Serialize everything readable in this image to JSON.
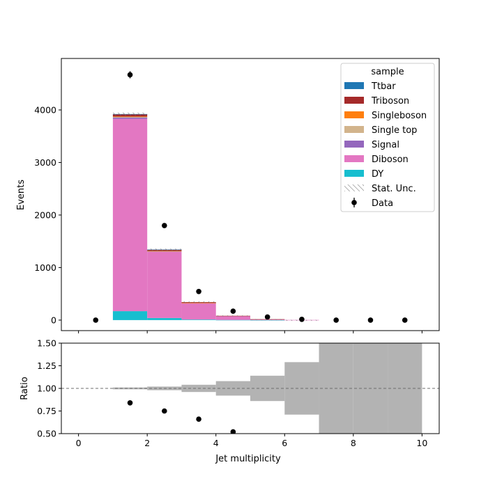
{
  "chart_data": {
    "type": "bar",
    "stacked": true,
    "main": {
      "ylabel": "Events",
      "xlim": [
        -0.5,
        10.5
      ],
      "ylim": [
        -200,
        4980
      ],
      "yticks": [
        0,
        1000,
        2000,
        3000,
        4000
      ],
      "tick_labels": {
        "y": [
          "0",
          "1000",
          "2000",
          "3000",
          "4000"
        ]
      }
    },
    "bins": [
      [
        1,
        2
      ],
      [
        2,
        3
      ],
      [
        3,
        4
      ],
      [
        4,
        5
      ],
      [
        5,
        6
      ],
      [
        6,
        7
      ]
    ],
    "series": [
      {
        "name": "DY",
        "color": "#17becf",
        "values": [
          170,
          40,
          10,
          3,
          1,
          0
        ]
      },
      {
        "name": "Diboson",
        "color": "#e377c2",
        "values": [
          3660,
          1260,
          315,
          75,
          15,
          3
        ]
      },
      {
        "name": "Signal",
        "color": "#9467bd",
        "values": [
          25,
          8,
          2,
          0,
          0,
          0
        ]
      },
      {
        "name": "Single top",
        "color": "#d2b48c",
        "values": [
          15,
          5,
          2,
          0,
          0,
          0
        ]
      },
      {
        "name": "Singleboson",
        "color": "#ff7f0e",
        "values": [
          5,
          3,
          1,
          0,
          0,
          0
        ]
      },
      {
        "name": "Triboson",
        "color": "#a52a2a",
        "values": [
          45,
          25,
          12,
          4,
          1,
          0
        ]
      },
      {
        "name": "Ttbar",
        "color": "#1f77b4",
        "values": [
          2,
          1,
          0,
          0,
          0,
          0
        ]
      }
    ],
    "stat_unc": [
      28,
      20,
      15,
      8,
      4,
      2
    ],
    "data": {
      "name": "Data",
      "x": [
        0.5,
        1.5,
        2.5,
        3.5,
        4.5,
        5.5,
        6.5,
        7.5,
        8.5,
        9.5
      ],
      "y": [
        0,
        4670,
        1800,
        545,
        170,
        60,
        15,
        0,
        0,
        0
      ],
      "err": [
        0,
        68,
        42,
        23,
        13,
        8,
        4,
        0,
        0,
        0
      ]
    },
    "ratio": {
      "ylabel": "Ratio",
      "ylim": [
        0.5,
        1.5
      ],
      "yticks": [
        0.5,
        0.75,
        1.0,
        1.25,
        1.5
      ],
      "tick_labels": {
        "y": [
          "0.50",
          "0.75",
          "1.00",
          "1.25",
          "1.50"
        ]
      },
      "reference": 1.0,
      "band_bins": [
        [
          1,
          2
        ],
        [
          2,
          3
        ],
        [
          3,
          4
        ],
        [
          4,
          5
        ],
        [
          5,
          6
        ],
        [
          6,
          7
        ],
        [
          7,
          8
        ],
        [
          8,
          9
        ],
        [
          9,
          10
        ]
      ],
      "band_halfwidth": [
        0.01,
        0.02,
        0.04,
        0.08,
        0.14,
        0.29,
        0.6,
        0.6,
        0.6
      ],
      "points_x": [
        1.5,
        2.5,
        3.5,
        4.5
      ],
      "points_y": [
        0.84,
        0.75,
        0.66,
        0.52
      ]
    },
    "xlabel": "Jet multiplicity",
    "xticks": [
      0,
      2,
      4,
      6,
      8,
      10
    ],
    "xtick_labels": [
      "0",
      "2",
      "4",
      "6",
      "8",
      "10"
    ],
    "legend": {
      "title": "sample",
      "location": "upper right",
      "entries": [
        "Ttbar",
        "Triboson",
        "Singleboson",
        "Single top",
        "Signal",
        "Diboson",
        "DY",
        "Stat. Unc.",
        "Data"
      ]
    }
  }
}
